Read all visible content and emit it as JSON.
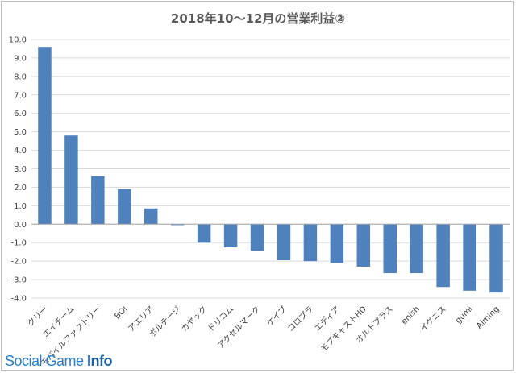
{
  "chart_data": {
    "type": "bar",
    "title": "2018年10～12月の営業利益②",
    "categories": [
      "グリー",
      "エイチーム",
      "モバイルファクトリー",
      "BOI",
      "アエリア",
      "ボルテージ",
      "カヤック",
      "ドリコム",
      "アクセルマーク",
      "ケイブ",
      "コロプラ",
      "エディア",
      "モブキャストHD",
      "オルトプラス",
      "enish",
      "イグニス",
      "gumi",
      "Aiming"
    ],
    "values": [
      9.6,
      4.8,
      2.6,
      1.9,
      0.85,
      -0.05,
      -1.0,
      -1.25,
      -1.45,
      -1.95,
      -2.0,
      -2.1,
      -2.3,
      -2.65,
      -2.65,
      -3.4,
      -3.6,
      -3.7
    ],
    "ylim": [
      -4.0,
      10.0
    ],
    "yticks": [
      "10.0",
      "9.0",
      "8.0",
      "7.0",
      "6.0",
      "5.0",
      "4.0",
      "3.0",
      "2.0",
      "1.0",
      "0.0",
      "-1.0",
      "-2.0",
      "-3.0",
      "-4.0"
    ],
    "xlabel": "",
    "ylabel": "",
    "grid": true,
    "colors": {
      "bar": "#4f81bd",
      "negative_tick": "#c00000",
      "grid": "#d9d9d9"
    }
  },
  "watermark": {
    "prefix": "Social Game ",
    "strong": "Info"
  }
}
